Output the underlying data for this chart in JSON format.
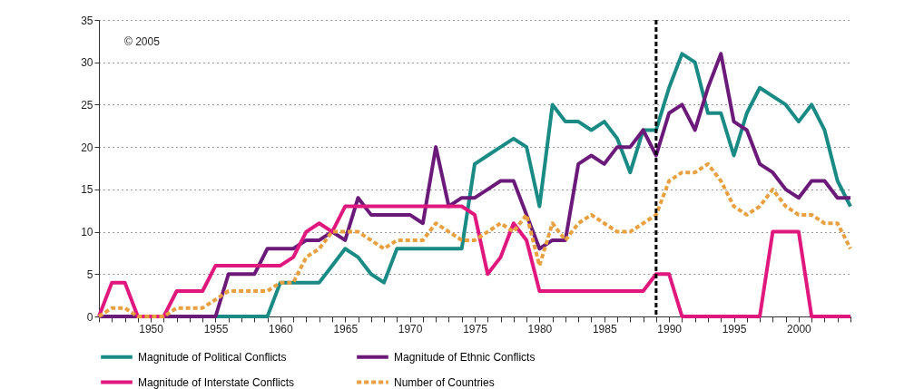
{
  "chart_data": {
    "type": "line",
    "x": [
      1946,
      1947,
      1948,
      1949,
      1950,
      1951,
      1952,
      1953,
      1954,
      1955,
      1956,
      1957,
      1958,
      1959,
      1960,
      1961,
      1962,
      1963,
      1964,
      1965,
      1966,
      1967,
      1968,
      1969,
      1970,
      1971,
      1972,
      1973,
      1974,
      1975,
      1976,
      1977,
      1978,
      1979,
      1980,
      1981,
      1982,
      1983,
      1984,
      1985,
      1986,
      1987,
      1988,
      1989,
      1990,
      1991,
      1992,
      1993,
      1994,
      1995,
      1996,
      1997,
      1998,
      1999,
      2000,
      2001,
      2002,
      2003,
      2004
    ],
    "series": [
      {
        "name": "Magnitude of Political Conflicts",
        "color": "#1a8a85",
        "values": [
          null,
          null,
          null,
          null,
          null,
          null,
          null,
          null,
          0,
          0,
          0,
          0,
          0,
          0,
          4,
          4,
          4,
          4,
          6,
          8,
          7,
          5,
          4,
          8,
          8,
          8,
          8,
          8,
          8,
          18,
          19,
          20,
          21,
          20,
          13,
          25,
          23,
          23,
          22,
          23,
          21,
          17,
          22,
          22,
          27,
          31,
          30,
          24,
          24,
          19,
          24,
          27,
          26,
          25,
          23,
          25,
          22,
          16,
          13
        ]
      },
      {
        "name": "Magnitude of Ethnic Conflicts",
        "color": "#6b1a7a",
        "values": [
          0,
          0,
          0,
          0,
          0,
          0,
          0,
          0,
          0,
          0,
          5,
          5,
          5,
          8,
          8,
          8,
          9,
          9,
          10,
          9,
          14,
          12,
          12,
          12,
          12,
          11,
          20,
          13,
          14,
          14,
          15,
          16,
          16,
          12,
          8,
          9,
          9,
          18,
          19,
          18,
          20,
          20,
          22,
          19,
          24,
          25,
          22,
          27,
          31,
          23,
          22,
          18,
          17,
          15,
          14,
          16,
          16,
          14,
          14
        ]
      },
      {
        "name": "Magnitude of Interstate Conflicts",
        "color": "#e0187e",
        "values": [
          0,
          4,
          4,
          0,
          0,
          0,
          3,
          3,
          3,
          6,
          6,
          6,
          6,
          6,
          6,
          7,
          10,
          11,
          10,
          13,
          13,
          13,
          13,
          13,
          13,
          13,
          13,
          13,
          13,
          12,
          5,
          7,
          11,
          9,
          3,
          3,
          3,
          3,
          3,
          3,
          3,
          3,
          3,
          5,
          5,
          0,
          0,
          0,
          0,
          0,
          0,
          0,
          10,
          10,
          10,
          0,
          0,
          0,
          0
        ]
      },
      {
        "name": "Number of Countries",
        "color": "#e8a040",
        "line_style": "dashed",
        "values": [
          0,
          1,
          1,
          0,
          0,
          0,
          1,
          1,
          1,
          2,
          3,
          3,
          3,
          3,
          4,
          4,
          7,
          8,
          10,
          10,
          10,
          9,
          8,
          9,
          9,
          9,
          11,
          10,
          9,
          9,
          10,
          11,
          10,
          12,
          6,
          11,
          9,
          11,
          12,
          11,
          10,
          10,
          11,
          12,
          16,
          17,
          17,
          18,
          16,
          13,
          12,
          13,
          15,
          13,
          12,
          12,
          11,
          11,
          8
        ]
      }
    ],
    "xlim": [
      1946,
      2004
    ],
    "xticks": [
      {
        "value": 1946,
        "label": null
      },
      {
        "value": 1947,
        "label": null
      },
      {
        "value": 1948,
        "label": null
      },
      {
        "value": 1949,
        "label": null
      },
      1950,
      {
        "value": 1951,
        "label": null
      },
      {
        "value": 1952,
        "label": null
      },
      {
        "value": 1953,
        "label": null
      },
      {
        "value": 1954,
        "label": null
      },
      1955,
      {
        "value": 1956,
        "label": null
      },
      {
        "value": 1957,
        "label": null
      },
      {
        "value": 1958,
        "label": null
      },
      {
        "value": 1959,
        "label": null
      },
      1960,
      {
        "value": 1961,
        "label": null
      },
      {
        "value": 1962,
        "label": null
      },
      {
        "value": 1963,
        "label": null
      },
      {
        "value": 1964,
        "label": null
      },
      1965,
      {
        "value": 1966,
        "label": null
      },
      {
        "value": 1967,
        "label": null
      },
      {
        "value": 1968,
        "label": null
      },
      {
        "value": 1969,
        "label": null
      },
      1970,
      {
        "value": 1971,
        "label": null
      },
      {
        "value": 1972,
        "label": null
      },
      {
        "value": 1973,
        "label": null
      },
      {
        "value": 1974,
        "label": null
      },
      1975,
      {
        "value": 1976,
        "label": null
      },
      {
        "value": 1977,
        "label": null
      },
      {
        "value": 1978,
        "label": null
      },
      {
        "value": 1979,
        "label": null
      },
      1980,
      {
        "value": 1981,
        "label": null
      },
      {
        "value": 1982,
        "label": null
      },
      {
        "value": 1983,
        "label": null
      },
      {
        "value": 1984,
        "label": null
      },
      1985,
      {
        "value": 1986,
        "label": null
      },
      {
        "value": 1987,
        "label": null
      },
      {
        "value": 1988,
        "label": null
      },
      {
        "value": 1989,
        "label": null
      },
      1990,
      {
        "value": 1991,
        "label": null
      },
      {
        "value": 1992,
        "label": null
      },
      {
        "value": 1993,
        "label": null
      },
      {
        "value": 1994,
        "label": null
      },
      1995,
      {
        "value": 1996,
        "label": null
      },
      {
        "value": 1997,
        "label": null
      },
      {
        "value": 1998,
        "label": null
      },
      {
        "value": 1999,
        "label": null
      },
      2000,
      {
        "value": 2001,
        "label": null
      },
      {
        "value": 2002,
        "label": null
      },
      {
        "value": 2003,
        "label": null
      },
      {
        "value": 2004,
        "label": null
      }
    ],
    "ylim": [
      0,
      35
    ],
    "yticks": [
      0,
      5,
      10,
      15,
      20,
      25,
      30,
      35
    ],
    "grid": "y",
    "legend": "bottom",
    "ref_lines": [
      {
        "axis": "x",
        "value": 1989,
        "color": "#000000",
        "line_style": "dashed"
      }
    ],
    "annotations": [
      "© 2005"
    ]
  }
}
